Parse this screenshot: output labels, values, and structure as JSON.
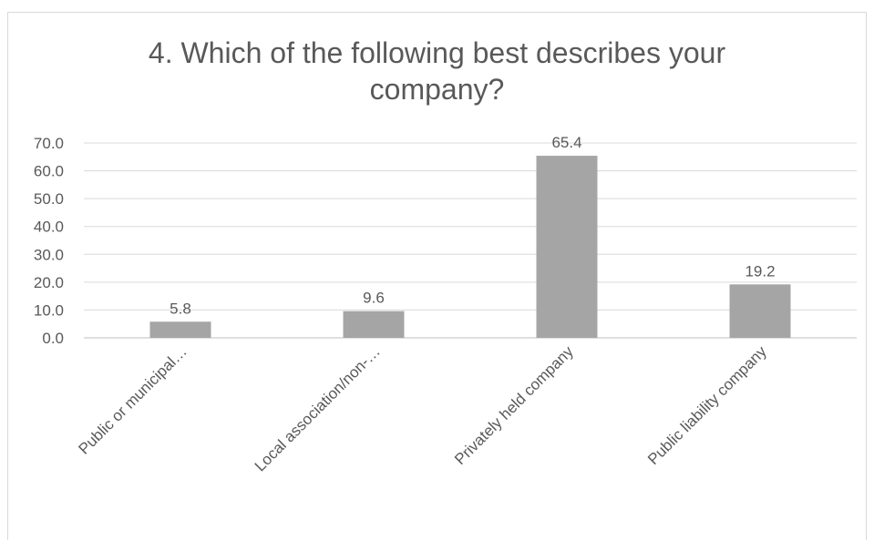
{
  "chart_data": {
    "type": "bar",
    "title_lines": [
      "4. Which of the following best describes your",
      "company?"
    ],
    "categories": [
      "Public or municipal…",
      "Local association/non-…",
      "Privately held company",
      "Public liability company"
    ],
    "values": [
      5.8,
      9.6,
      65.4,
      19.2
    ],
    "value_labels": [
      "5.8",
      "9.6",
      "65.4",
      "19.2"
    ],
    "ylim": [
      0,
      70
    ],
    "yticks": [
      "0.0",
      "10.0",
      "20.0",
      "30.0",
      "40.0",
      "50.0",
      "60.0",
      "70.0"
    ],
    "grid": true,
    "legend": "none",
    "colors": {
      "bar": "#a5a5a5",
      "grid": "#d9d9d9",
      "text": "#595959",
      "axis": "#bfbfbf"
    }
  }
}
